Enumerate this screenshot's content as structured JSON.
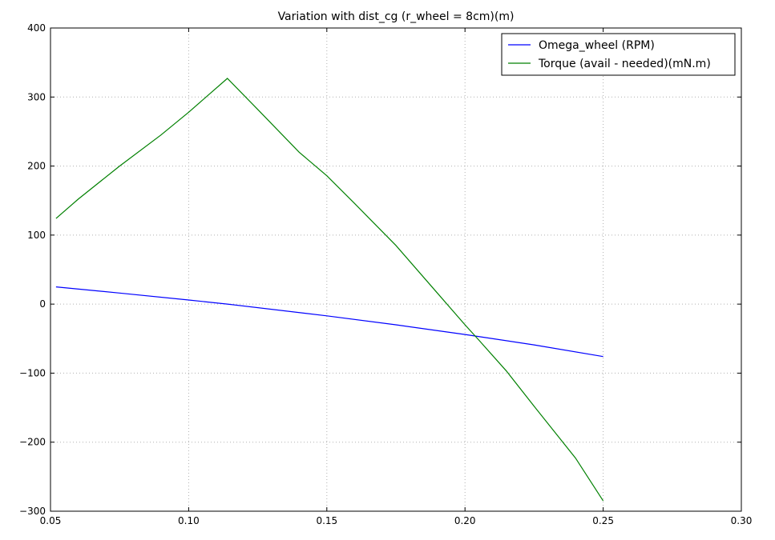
{
  "chart_data": {
    "type": "line",
    "title": "Variation with dist_cg (r_wheel = 8cm)(m)",
    "xlabel": "",
    "ylabel": "",
    "xlim": [
      0.05,
      0.3
    ],
    "ylim": [
      -300,
      400
    ],
    "xticks": [
      "0.05",
      "0.10",
      "0.15",
      "0.20",
      "0.25",
      "0.30"
    ],
    "yticks": [
      "400",
      "300",
      "200",
      "100",
      "0",
      "−100",
      "−200",
      "−300"
    ],
    "grid": true,
    "legend_position": "top-right",
    "series": [
      {
        "name": "Omega_wheel (RPM)",
        "color": "#0000ff",
        "x": [
          0.052,
          0.075,
          0.1,
          0.114,
          0.15,
          0.175,
          0.2,
          0.225,
          0.25
        ],
        "y": [
          25,
          16,
          6,
          0,
          -17,
          -30,
          -44,
          -59,
          -76
        ]
      },
      {
        "name": "Torque (avail - needed)(mN.m)",
        "color": "#008000",
        "x": [
          0.052,
          0.06,
          0.075,
          0.09,
          0.1,
          0.114,
          0.125,
          0.14,
          0.15,
          0.16,
          0.175,
          0.19,
          0.2,
          0.205,
          0.215,
          0.225,
          0.24,
          0.25
        ],
        "y": [
          124,
          152,
          200,
          245,
          278,
          327,
          282,
          220,
          186,
          146,
          85,
          16,
          -30,
          -52,
          -97,
          -148,
          -223,
          -285
        ]
      }
    ]
  }
}
